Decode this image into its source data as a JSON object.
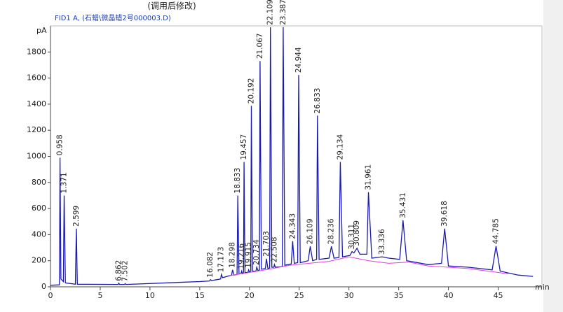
{
  "chart_data": {
    "type": "line",
    "title": "(调用后修改)",
    "subtitle": "FID1 A, (石蜡\\微晶蜡2号000003.D)",
    "ylabel": "pA",
    "xlabel": "min",
    "xlim": [
      0,
      49.4
    ],
    "ylim": [
      0,
      2000
    ],
    "xticks": [
      0,
      5,
      10,
      15,
      20,
      25,
      30,
      35,
      40,
      45
    ],
    "yticks": [
      0,
      200,
      400,
      600,
      800,
      1000,
      1200,
      1400,
      1600,
      1800
    ],
    "series": [
      {
        "color": "#1a1ab0",
        "x": [
          0,
          0.9,
          0.958,
          1.05,
          1.3,
          1.371,
          1.5,
          2.5,
          2.599,
          2.7,
          6.8,
          6.862,
          6.95,
          7.45,
          7.502,
          7.6,
          15,
          16.0,
          16.082,
          16.2,
          17.1,
          17.173,
          17.3,
          18.2,
          18.298,
          18.45,
          18.75,
          18.833,
          18.95,
          19.15,
          19.216,
          19.3,
          19.4,
          19.457,
          19.55,
          19.85,
          19.915,
          20.0,
          20.13,
          20.192,
          20.3,
          20.65,
          20.734,
          20.85,
          21.0,
          21.067,
          21.2,
          21.6,
          21.703,
          21.85,
          22.03,
          22.109,
          22.25,
          22.45,
          22.508,
          22.6,
          23.3,
          23.387,
          23.55,
          24.2,
          24.343,
          24.5,
          24.85,
          24.944,
          25.1,
          25.9,
          26.109,
          26.35,
          26.75,
          26.833,
          27.0,
          28.0,
          28.236,
          28.5,
          29.0,
          29.134,
          29.35,
          30.1,
          30.311,
          30.5,
          30.809,
          31.1,
          31.8,
          31.961,
          32.3,
          33.336,
          34.0,
          35.1,
          35.431,
          35.8,
          38.0,
          39.3,
          39.618,
          40.0,
          42.0,
          44.4,
          44.785,
          45.2,
          47,
          48.5
        ],
        "values": [
          12,
          15,
          990,
          60,
          40,
          700,
          30,
          20,
          446,
          20,
          18,
          28,
          18,
          18,
          24,
          18,
          40,
          45,
          55,
          48,
          60,
          95,
          70,
          90,
          130,
          90,
          95,
          700,
          100,
          100,
          120,
          100,
          105,
          957,
          110,
          110,
          130,
          115,
          120,
          1387,
          120,
          120,
          150,
          125,
          130,
          1731,
          135,
          140,
          215,
          140,
          145,
          1990,
          150,
          150,
          170,
          150,
          155,
          1990,
          165,
          175,
          350,
          180,
          185,
          1624,
          185,
          200,
          310,
          200,
          210,
          1312,
          210,
          220,
          310,
          220,
          225,
          957,
          230,
          240,
          270,
          260,
          296,
          250,
          250,
          726,
          220,
          230,
          220,
          210,
          510,
          200,
          170,
          180,
          446,
          160,
          150,
          130,
          312,
          120,
          90,
          80
        ]
      },
      {
        "color": "#e040e0",
        "x": [
          18,
          20,
          22,
          24,
          26,
          28,
          30,
          32,
          34,
          36,
          38,
          40,
          42,
          44,
          46
        ],
        "values": [
          85,
          110,
          135,
          165,
          180,
          195,
          230,
          200,
          180,
          190,
          160,
          150,
          140,
          120,
          100
        ]
      }
    ],
    "peak_labels": [
      0.958,
      1.371,
      2.599,
      6.862,
      7.502,
      16.082,
      17.173,
      18.298,
      18.833,
      19.216,
      19.457,
      19.915,
      20.192,
      20.734,
      21.067,
      21.703,
      22.109,
      22.508,
      23.387,
      24.343,
      24.944,
      26.109,
      26.833,
      28.236,
      29.134,
      30.311,
      30.809,
      31.961,
      33.336,
      35.431,
      39.618,
      44.785
    ]
  }
}
